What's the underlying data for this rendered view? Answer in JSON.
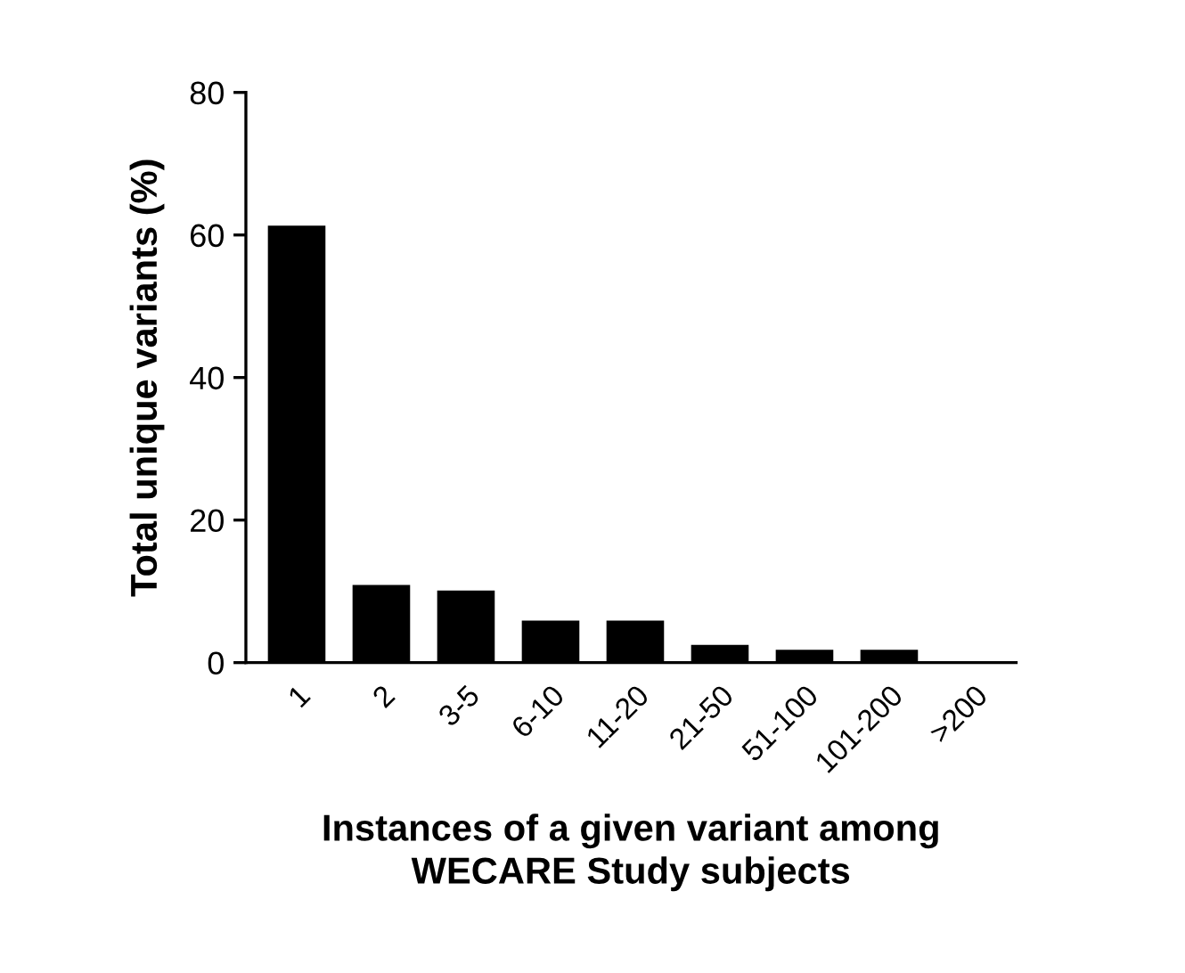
{
  "chart_data": {
    "type": "bar",
    "xlabel": "Instances of a given variant among\nWECARE Study subjects",
    "ylabel": "Total unique variants (%)",
    "categories": [
      "1",
      "2",
      "3-5",
      "6-10",
      "11-20",
      "21-50",
      "51-100",
      "101-200",
      ">200"
    ],
    "values": [
      61.3,
      10.9,
      10.1,
      5.9,
      5.9,
      2.5,
      1.8,
      1.8,
      0
    ],
    "color": "#000000",
    "ylim": [
      0,
      80
    ],
    "yticks": [
      0,
      20,
      40,
      60,
      80
    ],
    "grid": false,
    "legend": false
  }
}
